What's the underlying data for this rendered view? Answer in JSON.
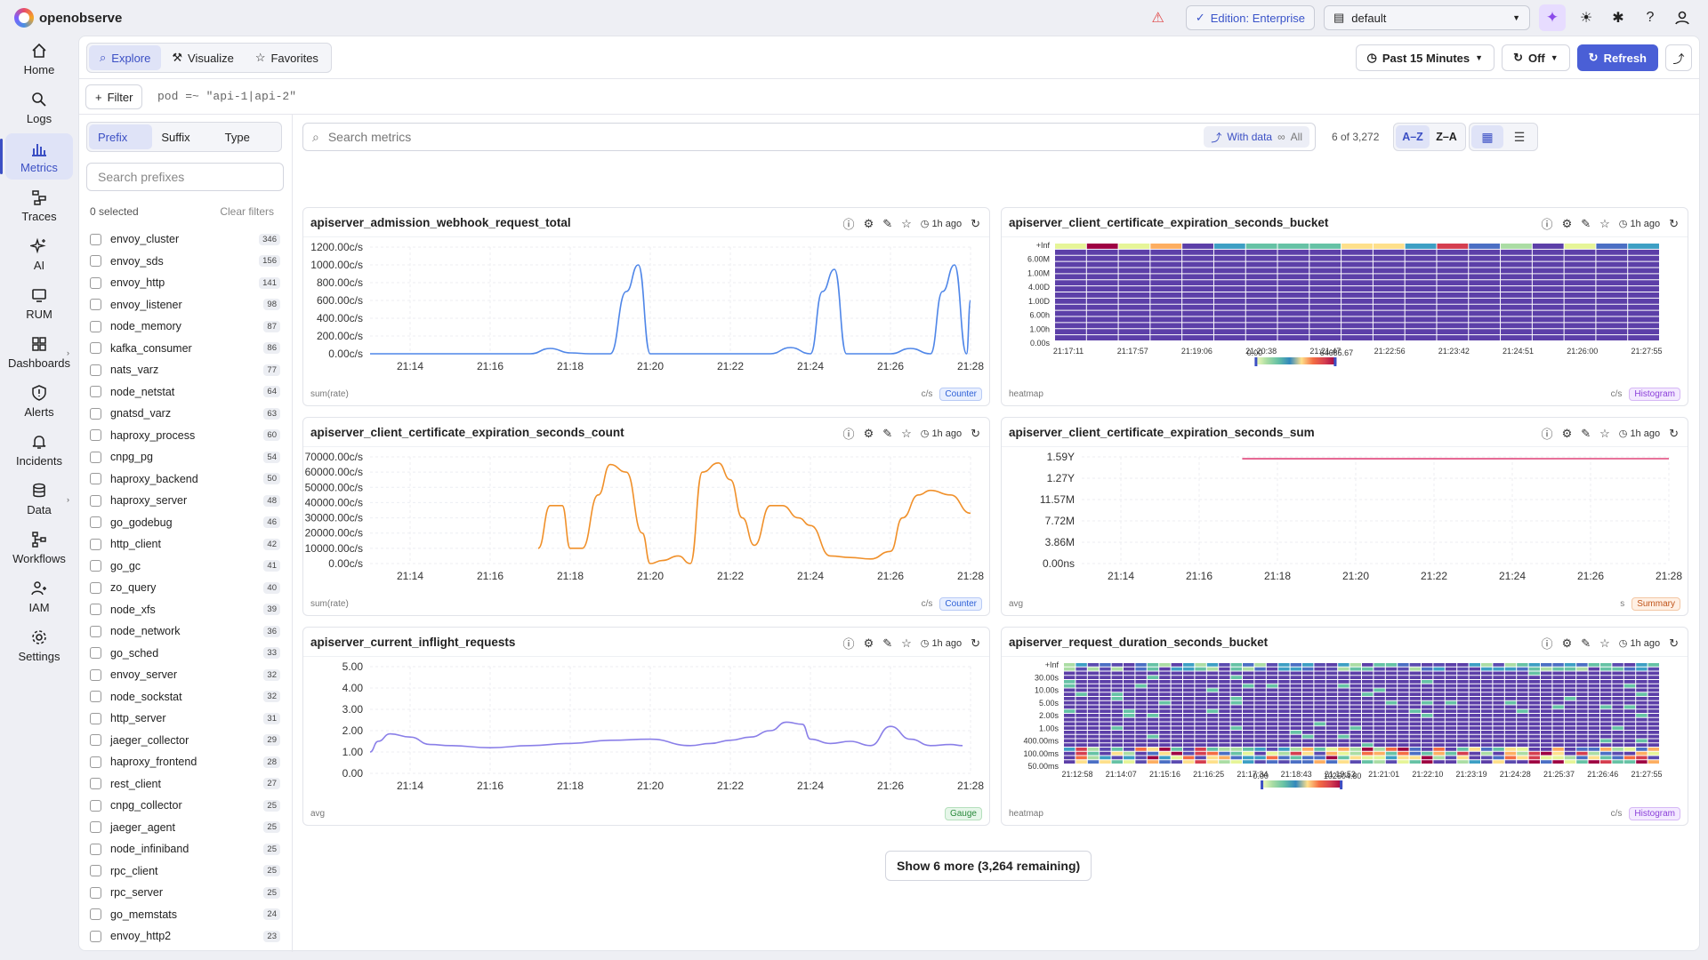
{
  "app": {
    "name": "openobserve"
  },
  "topbar": {
    "edition": "Edition: Enterprise",
    "org": "default"
  },
  "nav": [
    {
      "label": "Home",
      "icon": "home-icon"
    },
    {
      "label": "Logs",
      "icon": "search-icon"
    },
    {
      "label": "Metrics",
      "icon": "bar-chart-icon",
      "active": true
    },
    {
      "label": "Traces",
      "icon": "traces-icon"
    },
    {
      "label": "AI",
      "icon": "sparkle-icon"
    },
    {
      "label": "RUM",
      "icon": "monitor-icon"
    },
    {
      "label": "Dashboards",
      "icon": "dashboard-icon",
      "expand": true
    },
    {
      "label": "Alerts",
      "icon": "alert-icon"
    },
    {
      "label": "Incidents",
      "icon": "bell-icon"
    },
    {
      "label": "Data",
      "icon": "database-icon",
      "expand": true
    },
    {
      "label": "Workflows",
      "icon": "workflow-icon"
    },
    {
      "label": "IAM",
      "icon": "users-icon"
    },
    {
      "label": "Settings",
      "icon": "gear-icon"
    }
  ],
  "toolbar": {
    "tabs": [
      {
        "label": "Explore"
      },
      {
        "label": "Visualize"
      },
      {
        "label": "Favorites"
      }
    ],
    "time_range": "Past 15 Minutes",
    "auto_refresh": "Off",
    "refresh_label": "Refresh"
  },
  "filter": {
    "label": "Filter",
    "query": "pod =~ \"api-1|api-2\""
  },
  "prefix_panel": {
    "modes": [
      "Prefix",
      "Suffix",
      "Type"
    ],
    "search_placeholder": "Search prefixes",
    "selected": "0 selected",
    "clear": "Clear filters",
    "items": [
      {
        "name": "envoy_cluster",
        "count": "346"
      },
      {
        "name": "envoy_sds",
        "count": "156"
      },
      {
        "name": "envoy_http",
        "count": "141"
      },
      {
        "name": "envoy_listener",
        "count": "98"
      },
      {
        "name": "node_memory",
        "count": "87"
      },
      {
        "name": "kafka_consumer",
        "count": "86"
      },
      {
        "name": "nats_varz",
        "count": "77"
      },
      {
        "name": "node_netstat",
        "count": "64"
      },
      {
        "name": "gnatsd_varz",
        "count": "63"
      },
      {
        "name": "haproxy_process",
        "count": "60"
      },
      {
        "name": "cnpg_pg",
        "count": "54"
      },
      {
        "name": "haproxy_backend",
        "count": "50"
      },
      {
        "name": "haproxy_server",
        "count": "48"
      },
      {
        "name": "go_godebug",
        "count": "46"
      },
      {
        "name": "http_client",
        "count": "42"
      },
      {
        "name": "go_gc",
        "count": "41"
      },
      {
        "name": "zo_query",
        "count": "40"
      },
      {
        "name": "node_xfs",
        "count": "39"
      },
      {
        "name": "node_network",
        "count": "36"
      },
      {
        "name": "go_sched",
        "count": "33"
      },
      {
        "name": "envoy_server",
        "count": "32"
      },
      {
        "name": "node_sockstat",
        "count": "32"
      },
      {
        "name": "http_server",
        "count": "31"
      },
      {
        "name": "jaeger_collector",
        "count": "29"
      },
      {
        "name": "haproxy_frontend",
        "count": "28"
      },
      {
        "name": "rest_client",
        "count": "27"
      },
      {
        "name": "cnpg_collector",
        "count": "25"
      },
      {
        "name": "jaeger_agent",
        "count": "25"
      },
      {
        "name": "node_infiniband",
        "count": "25"
      },
      {
        "name": "rpc_client",
        "count": "25"
      },
      {
        "name": "rpc_server",
        "count": "25"
      },
      {
        "name": "go_memstats",
        "count": "24"
      },
      {
        "name": "envoy_http2",
        "count": "23"
      }
    ]
  },
  "metrics_bar": {
    "search_placeholder": "Search metrics",
    "with_data": "With data",
    "all": "All",
    "count_text": "6 of 3,272",
    "sort_az": "A–Z",
    "sort_za": "Z–A"
  },
  "cards": [
    {
      "title": "apiserver_admission_webhook_request_total",
      "ago": "1h ago",
      "footer": "sum(rate)",
      "unit": "c/s",
      "badge": "Counter"
    },
    {
      "title": "apiserver_client_certificate_expiration_seconds_bucket",
      "ago": "1h ago",
      "footer": "heatmap",
      "unit": "c/s",
      "badge": "Histogram"
    },
    {
      "title": "apiserver_client_certificate_expiration_seconds_count",
      "ago": "1h ago",
      "footer": "sum(rate)",
      "unit": "c/s",
      "badge": "Counter"
    },
    {
      "title": "apiserver_client_certificate_expiration_seconds_sum",
      "ago": "1h ago",
      "footer": "avg",
      "unit": "s",
      "badge": "Summary"
    },
    {
      "title": "apiserver_current_inflight_requests",
      "ago": "1h ago",
      "footer": "avg",
      "unit": "",
      "badge": "Gauge"
    },
    {
      "title": "apiserver_request_duration_seconds_bucket",
      "ago": "1h ago",
      "footer": "heatmap",
      "unit": "c/s",
      "badge": "Histogram"
    }
  ],
  "show_more": "Show 6 more (3,264 remaining)",
  "chart_data": [
    {
      "type": "line",
      "color": "#4f86e8",
      "x": [
        "21:13",
        "21:14",
        "21:15",
        "21:16",
        "21:17",
        "21:17.5",
        "21:18",
        "21:18.5",
        "21:19",
        "21:19.4",
        "21:19.7",
        "21:20",
        "21:20.3",
        "21:21",
        "21:22",
        "21:23",
        "21:23.5",
        "21:24",
        "21:24.3",
        "21:24.6",
        "21:24.9",
        "21:25.5",
        "21:26",
        "21:26.5",
        "21:27",
        "21:27.3",
        "21:27.6",
        "21:27.9",
        "21:28"
      ],
      "y": [
        0,
        0,
        0,
        0,
        0,
        60,
        10,
        0,
        0,
        700,
        1000,
        0,
        0,
        0,
        0,
        0,
        70,
        0,
        700,
        950,
        0,
        0,
        0,
        60,
        0,
        700,
        1000,
        0,
        600
      ],
      "yticks": [
        "0.00c/s",
        "200.00c/s",
        "400.00c/s",
        "600.00c/s",
        "800.00c/s",
        "1000.00c/s",
        "1200.00c/s"
      ],
      "xticks": [
        "21:14",
        "21:16",
        "21:18",
        "21:20",
        "21:22",
        "21:24",
        "21:26",
        "21:28"
      ]
    },
    {
      "type": "heatmap",
      "yticks": [
        "0.00s",
        "1.00h",
        "6.00h",
        "1.00D",
        "4.00D",
        "1.00M",
        "6.00M",
        "+Inf"
      ],
      "xticks": [
        "21:17:11",
        "21:17:57",
        "21:19:06",
        "21:20:38",
        "21:21:47",
        "21:22:56",
        "21:23:42",
        "21:24:51",
        "21:26:00",
        "21:27:55"
      ],
      "scale": {
        "min": "0.00",
        "max": "64685.67"
      }
    },
    {
      "type": "line",
      "color": "#f0902a",
      "x": [
        "21:17.2",
        "21:17.5",
        "21:17.8",
        "21:18",
        "21:18.3",
        "21:18.7",
        "21:19",
        "21:19.4",
        "21:19.8",
        "21:20",
        "21:20.3",
        "21:20.7",
        "21:21",
        "21:21.3",
        "21:21.7",
        "21:22",
        "21:22.3",
        "21:22.6",
        "21:23",
        "21:23.3",
        "21:23.7",
        "21:24",
        "21:24.5",
        "21:25",
        "21:25.5",
        "21:26",
        "21:26.3",
        "21:26.7",
        "21:27",
        "21:27.5",
        "21:28"
      ],
      "y": [
        10000,
        38000,
        38000,
        10000,
        10000,
        45000,
        65000,
        60000,
        20000,
        0,
        2000,
        5000,
        0,
        60000,
        66000,
        55000,
        30000,
        12000,
        38000,
        38000,
        30000,
        25000,
        5000,
        4000,
        3000,
        8000,
        30000,
        45000,
        48000,
        45000,
        33000
      ],
      "yticks": [
        "0.00c/s",
        "10000.00c/s",
        "20000.00c/s",
        "30000.00c/s",
        "40000.00c/s",
        "50000.00c/s",
        "60000.00c/s",
        "70000.00c/s"
      ],
      "xticks": [
        "21:14",
        "21:16",
        "21:18",
        "21:20",
        "21:22",
        "21:24",
        "21:26",
        "21:28"
      ]
    },
    {
      "type": "line",
      "color": "#e0457a",
      "x": [
        "21:17.1",
        "21:28"
      ],
      "y": [
        1.58,
        1.59
      ],
      "yticks": [
        "0.00ns",
        "3.86M",
        "7.72M",
        "11.57M",
        "1.27Y",
        "1.59Y"
      ],
      "xticks": [
        "21:14",
        "21:16",
        "21:18",
        "21:20",
        "21:22",
        "21:24",
        "21:26",
        "21:28"
      ]
    },
    {
      "type": "line",
      "color": "#8a7fe8",
      "x": [
        "21:13",
        "21:13.2",
        "21:13.5",
        "21:14",
        "21:14.5",
        "21:15",
        "21:16",
        "21:17",
        "21:18",
        "21:19",
        "21:20",
        "21:21",
        "21:21.5",
        "21:22",
        "21:22.5",
        "21:23",
        "21:23.4",
        "21:23.8",
        "21:24",
        "21:24.5",
        "21:25",
        "21:25.5",
        "21:26",
        "21:26.5",
        "21:27",
        "21:27.5",
        "21:27.8"
      ],
      "y": [
        1.0,
        1.5,
        1.85,
        1.7,
        1.35,
        1.3,
        1.2,
        1.3,
        1.4,
        1.55,
        1.6,
        1.3,
        1.4,
        1.55,
        1.7,
        2.0,
        2.4,
        2.3,
        1.6,
        1.4,
        1.5,
        1.3,
        2.2,
        1.6,
        1.3,
        1.35,
        1.3
      ],
      "yticks": [
        "0.00",
        "1.00",
        "2.00",
        "3.00",
        "4.00",
        "5.00"
      ],
      "xticks": [
        "21:14",
        "21:16",
        "21:18",
        "21:20",
        "21:22",
        "21:24",
        "21:26",
        "21:28"
      ]
    },
    {
      "type": "heatmap",
      "yticks": [
        "50.00ms",
        "100.00ms",
        "400.00ms",
        "1.00s",
        "2.00s",
        "5.00s",
        "10.00s",
        "30.00s",
        "+Inf"
      ],
      "xticks": [
        "21:12:58",
        "21:14:07",
        "21:15:16",
        "21:16:25",
        "21:17:34",
        "21:18:43",
        "21:19:52",
        "21:21:01",
        "21:22:10",
        "21:23:19",
        "21:24:28",
        "21:25:37",
        "21:26:46",
        "21:27:55"
      ],
      "scale": {
        "min": "0.00",
        "max": "102604.80"
      }
    }
  ]
}
